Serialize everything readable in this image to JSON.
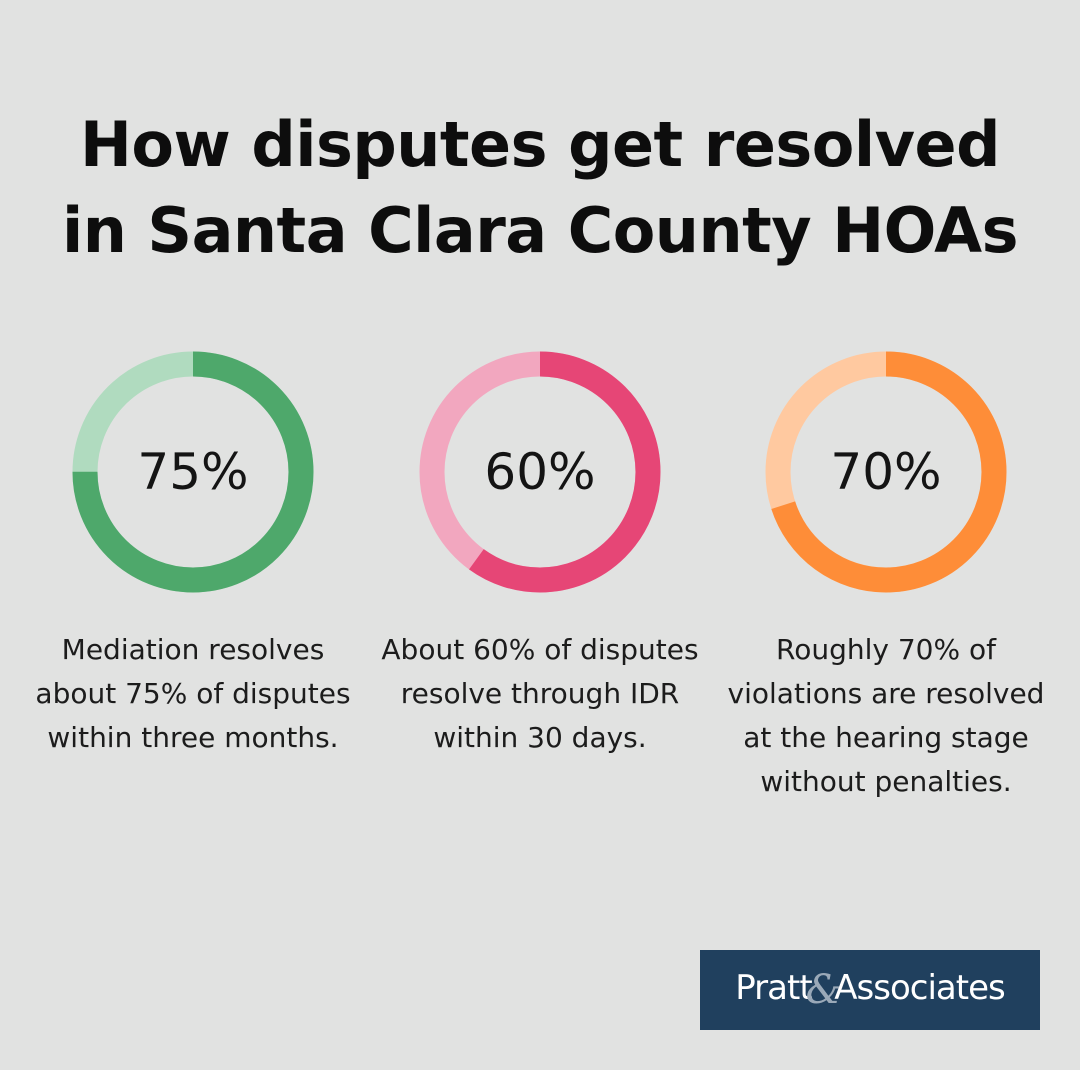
{
  "title": {
    "line1": "How disputes get resolved",
    "line2": "in Santa Clara County HOAs"
  },
  "chart_data": [
    {
      "type": "pie",
      "style": "donut",
      "value": 75,
      "max": 100,
      "label": "75%",
      "description": "Mediation resolves about 75% of disputes within three months.",
      "colors": {
        "fill": "#4ea86b",
        "track": "#b0dbbf"
      }
    },
    {
      "type": "pie",
      "style": "donut",
      "value": 60,
      "max": 100,
      "label": "60%",
      "description": "About 60% of disputes resolve through IDR within 30 days.",
      "colors": {
        "fill": "#e64676",
        "track": "#f2a7bf"
      }
    },
    {
      "type": "pie",
      "style": "donut",
      "value": 70,
      "max": 100,
      "label": "70%",
      "description": "Roughly 70% of violations are resolved at the hearing stage without penalties.",
      "colors": {
        "fill": "#fe8d38",
        "track": "#ffc9a0"
      }
    }
  ],
  "logo": {
    "part1": "Pratt",
    "amp": "&",
    "part2": "Associates"
  },
  "colors": {
    "background": "#e1e2e1",
    "logo_background": "#20405e"
  }
}
